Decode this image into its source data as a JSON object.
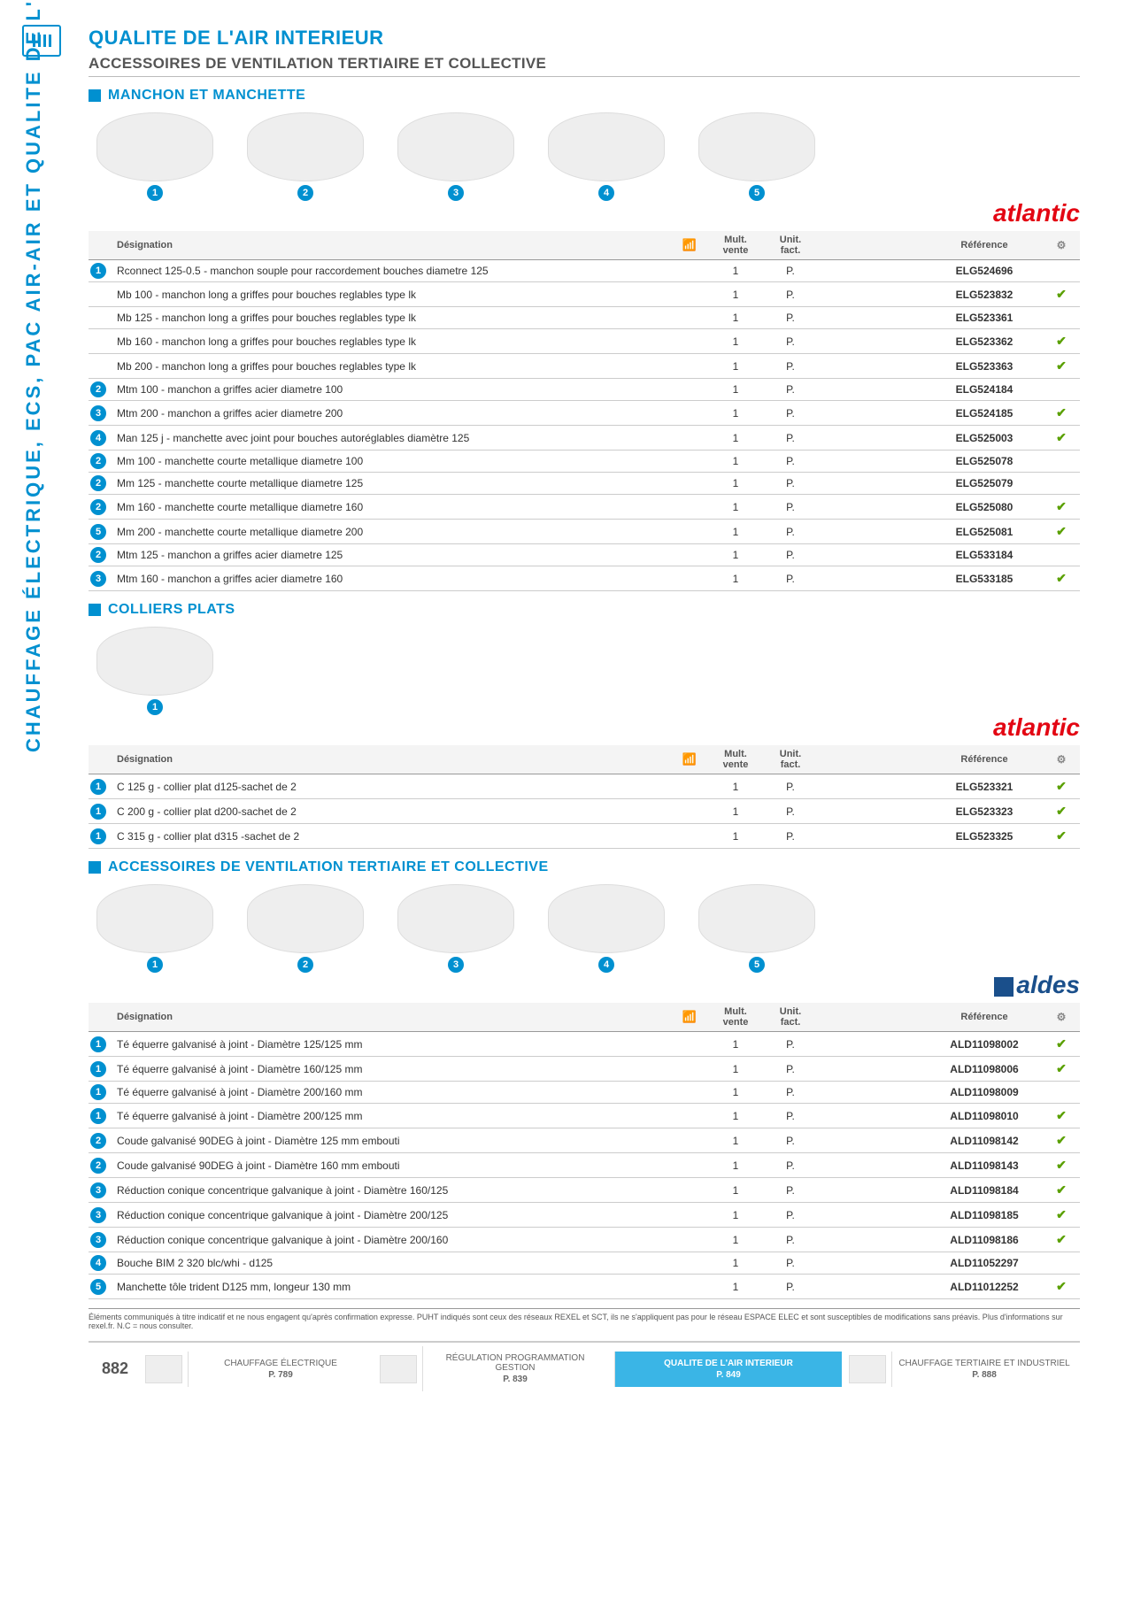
{
  "sideLabel": "CHAUFFAGE ÉLECTRIQUE, ECS, PAC AIR-AIR ET QUALITE DE L'AIR INTERIEUR",
  "pageTitle": "QUALITE DE L'AIR INTERIEUR",
  "pageSubtitle": "ACCESSOIRES DE VENTILATION TERTIAIRE ET COLLECTIVE",
  "pageNumber": "882",
  "footnote": "Éléments communiqués à titre indicatif et ne nous engagent qu'après confirmation expresse. PUHT indiqués sont ceux des réseaux REXEL et SCT, ils ne s'appliquent pas pour le réseau ESPACE ELEC et sont susceptibles de modifications sans préavis. Plus d'informations sur rexel.fr. N.C = nous consulter.",
  "tableHeaders": {
    "designation": "Désignation",
    "mult": "Mult. vente",
    "unit": "Unit. fact.",
    "reference": "Référence"
  },
  "brands": {
    "atlantic": "atlantic",
    "aldes": "aldes"
  },
  "sections": [
    {
      "title": "MANCHON ET MANCHETTE",
      "brand": "atlantic",
      "imageCount": 5,
      "rows": [
        {
          "badge": 1,
          "desig": "Rconnect 125-0.5 - manchon souple pour raccordement bouches diametre 125",
          "mult": "1",
          "unit": "P.",
          "ref": "ELG524696",
          "check": false
        },
        {
          "badge": null,
          "desig": "Mb 100 - manchon long a griffes pour bouches reglables type lk",
          "mult": "1",
          "unit": "P.",
          "ref": "ELG523832",
          "check": true
        },
        {
          "badge": null,
          "desig": "Mb 125 - manchon long a griffes pour bouches reglables type lk",
          "mult": "1",
          "unit": "P.",
          "ref": "ELG523361",
          "check": false
        },
        {
          "badge": null,
          "desig": "Mb 160 - manchon long a griffes pour bouches reglables type lk",
          "mult": "1",
          "unit": "P.",
          "ref": "ELG523362",
          "check": true
        },
        {
          "badge": null,
          "desig": "Mb 200 - manchon long a griffes pour bouches reglables type lk",
          "mult": "1",
          "unit": "P.",
          "ref": "ELG523363",
          "check": true
        },
        {
          "badge": 2,
          "desig": "Mtm 100 - manchon a griffes acier diametre 100",
          "mult": "1",
          "unit": "P.",
          "ref": "ELG524184",
          "check": false
        },
        {
          "badge": 3,
          "desig": "Mtm 200 - manchon a griffes acier diametre 200",
          "mult": "1",
          "unit": "P.",
          "ref": "ELG524185",
          "check": true
        },
        {
          "badge": 4,
          "desig": "Man 125 j - manchette avec joint pour bouches autoréglables diamètre 125",
          "mult": "1",
          "unit": "P.",
          "ref": "ELG525003",
          "check": true
        },
        {
          "badge": 2,
          "desig": "Mm 100 - manchette courte metallique diametre 100",
          "mult": "1",
          "unit": "P.",
          "ref": "ELG525078",
          "check": false
        },
        {
          "badge": 2,
          "desig": "Mm 125 - manchette courte metallique diametre 125",
          "mult": "1",
          "unit": "P.",
          "ref": "ELG525079",
          "check": false
        },
        {
          "badge": 2,
          "desig": "Mm 160 - manchette courte metallique diametre 160",
          "mult": "1",
          "unit": "P.",
          "ref": "ELG525080",
          "check": true
        },
        {
          "badge": 5,
          "desig": "Mm 200 - manchette courte metallique diametre 200",
          "mult": "1",
          "unit": "P.",
          "ref": "ELG525081",
          "check": true
        },
        {
          "badge": 2,
          "desig": "Mtm 125 - manchon a griffes acier diametre 125",
          "mult": "1",
          "unit": "P.",
          "ref": "ELG533184",
          "check": false
        },
        {
          "badge": 3,
          "desig": "Mtm 160 - manchon a griffes acier diametre 160",
          "mult": "1",
          "unit": "P.",
          "ref": "ELG533185",
          "check": true
        }
      ]
    },
    {
      "title": "COLLIERS PLATS",
      "brand": "atlantic",
      "imageCount": 1,
      "rows": [
        {
          "badge": 1,
          "desig": "C 125 g - collier plat d125-sachet de 2",
          "mult": "1",
          "unit": "P.",
          "ref": "ELG523321",
          "check": true
        },
        {
          "badge": 1,
          "desig": "C 200 g - collier plat d200-sachet de 2",
          "mult": "1",
          "unit": "P.",
          "ref": "ELG523323",
          "check": true
        },
        {
          "badge": 1,
          "desig": "C 315 g - collier plat d315 -sachet de 2",
          "mult": "1",
          "unit": "P.",
          "ref": "ELG523325",
          "check": true
        }
      ]
    },
    {
      "title": "ACCESSOIRES DE VENTILATION TERTIAIRE ET COLLECTIVE",
      "brand": "aldes",
      "imageCount": 5,
      "rows": [
        {
          "badge": 1,
          "desig": "Té équerre galvanisé à joint - Diamètre 125/125 mm",
          "mult": "1",
          "unit": "P.",
          "ref": "ALD11098002",
          "check": true
        },
        {
          "badge": 1,
          "desig": "Té équerre galvanisé à joint - Diamètre 160/125 mm",
          "mult": "1",
          "unit": "P.",
          "ref": "ALD11098006",
          "check": true
        },
        {
          "badge": 1,
          "desig": "Té équerre galvanisé à joint - Diamètre 200/160 mm",
          "mult": "1",
          "unit": "P.",
          "ref": "ALD11098009",
          "check": false
        },
        {
          "badge": 1,
          "desig": "Té équerre galvanisé à joint - Diamètre 200/125 mm",
          "mult": "1",
          "unit": "P.",
          "ref": "ALD11098010",
          "check": true
        },
        {
          "badge": 2,
          "desig": "Coude galvanisé 90DEG à joint - Diamètre 125 mm embouti",
          "mult": "1",
          "unit": "P.",
          "ref": "ALD11098142",
          "check": true
        },
        {
          "badge": 2,
          "desig": "Coude galvanisé 90DEG à joint - Diamètre 160 mm embouti",
          "mult": "1",
          "unit": "P.",
          "ref": "ALD11098143",
          "check": true
        },
        {
          "badge": 3,
          "desig": "Réduction conique concentrique galvanique à joint - Diamètre 160/125",
          "mult": "1",
          "unit": "P.",
          "ref": "ALD11098184",
          "check": true
        },
        {
          "badge": 3,
          "desig": "Réduction conique concentrique galvanique à joint - Diamètre 200/125",
          "mult": "1",
          "unit": "P.",
          "ref": "ALD11098185",
          "check": true
        },
        {
          "badge": 3,
          "desig": "Réduction conique concentrique galvanique à joint - Diamètre 200/160",
          "mult": "1",
          "unit": "P.",
          "ref": "ALD11098186",
          "check": true
        },
        {
          "badge": 4,
          "desig": "Bouche BIM 2 320 blc/whi - d125",
          "mult": "1",
          "unit": "P.",
          "ref": "ALD11052297",
          "check": false
        },
        {
          "badge": 5,
          "desig": "Manchette tôle trident D125 mm, longeur 130 mm",
          "mult": "1",
          "unit": "P.",
          "ref": "ALD11012252",
          "check": true
        }
      ]
    }
  ],
  "footerNav": [
    {
      "label": "CHAUFFAGE ÉLECTRIQUE",
      "page": "P. 789",
      "active": false
    },
    {
      "label": "RÉGULATION PROGRAMMATION GESTION",
      "page": "P. 839",
      "active": false
    },
    {
      "label": "QUALITE DE L'AIR INTERIEUR",
      "page": "P. 849",
      "active": true
    },
    {
      "label": "CHAUFFAGE TERTIAIRE ET INDUSTRIEL",
      "page": "P. 888",
      "active": false
    }
  ]
}
